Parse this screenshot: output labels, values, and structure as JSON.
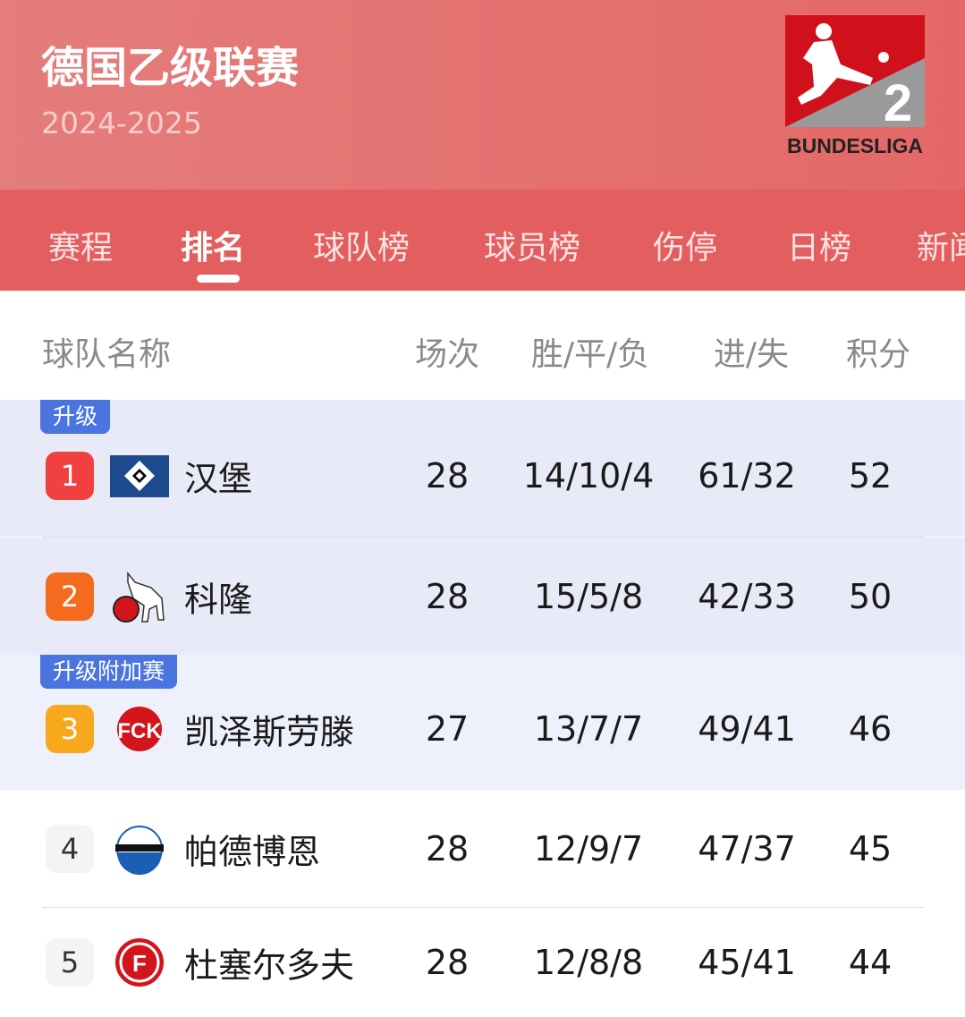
{
  "header": {
    "title": "德国乙级联赛",
    "season": "2024-2025",
    "logo_text": "BUNDESLIGA",
    "logo_number": "2"
  },
  "tabs": [
    {
      "label": "赛程"
    },
    {
      "label": "排名",
      "active": true
    },
    {
      "label": "球队榜"
    },
    {
      "label": "球员榜"
    },
    {
      "label": "伤停"
    },
    {
      "label": "日榜"
    },
    {
      "label": "新闻"
    }
  ],
  "columns": {
    "team": "球队名称",
    "played": "场次",
    "wdl": "胜/平/负",
    "goals": "进/失",
    "points": "积分"
  },
  "zones": [
    {
      "label": "升级",
      "color": "#4a74e0"
    },
    {
      "label": "升级附加赛",
      "color": "#4a74e0"
    }
  ],
  "rows": [
    {
      "rank": "1",
      "team": "汉堡",
      "played": "28",
      "wdl": "14/10/4",
      "goals": "61/32",
      "points": "52",
      "rank_color": "#f0403f",
      "crest": "hamburg-crest"
    },
    {
      "rank": "2",
      "team": "科隆",
      "played": "28",
      "wdl": "15/5/8",
      "goals": "42/33",
      "points": "50",
      "rank_color": "#f56b1d",
      "crest": "koln-crest"
    },
    {
      "rank": "3",
      "team": "凯泽斯劳滕",
      "played": "27",
      "wdl": "13/7/7",
      "goals": "49/41",
      "points": "46",
      "rank_color": "#f7a81c",
      "crest": "kaiserslautern-crest"
    },
    {
      "rank": "4",
      "team": "帕德博恩",
      "played": "28",
      "wdl": "12/9/7",
      "goals": "47/37",
      "points": "45",
      "crest": "paderborn-crest"
    },
    {
      "rank": "5",
      "team": "杜塞尔多夫",
      "played": "28",
      "wdl": "12/8/8",
      "goals": "45/41",
      "points": "44",
      "crest": "dusseldorf-crest"
    }
  ],
  "colors": {
    "header": "#e46867",
    "tabbar": "#e35e5f",
    "promotion_bg": "#e9eaf8",
    "playoff_bg": "#eef0fb"
  }
}
